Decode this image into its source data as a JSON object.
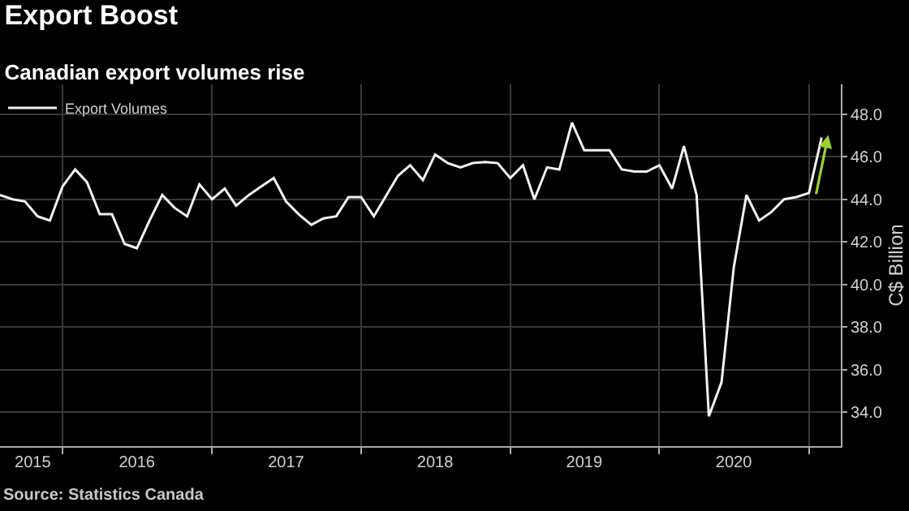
{
  "chart_data": {
    "type": "line",
    "title": "Export Boost",
    "subtitle": "Canadian export volumes rise",
    "ylabel": "C$ Billion",
    "x": [
      "2015-08",
      "2015-09",
      "2015-10",
      "2015-11",
      "2015-12",
      "2016-01",
      "2016-02",
      "2016-03",
      "2016-04",
      "2016-05",
      "2016-06",
      "2016-07",
      "2016-08",
      "2016-09",
      "2016-10",
      "2016-11",
      "2016-12",
      "2017-01",
      "2017-02",
      "2017-03",
      "2017-04",
      "2017-05",
      "2017-06",
      "2017-07",
      "2017-08",
      "2017-09",
      "2017-10",
      "2017-11",
      "2017-12",
      "2018-01",
      "2018-02",
      "2018-03",
      "2018-04",
      "2018-05",
      "2018-06",
      "2018-07",
      "2018-08",
      "2018-09",
      "2018-10",
      "2018-11",
      "2018-12",
      "2019-01",
      "2019-02",
      "2019-03",
      "2019-04",
      "2019-05",
      "2019-06",
      "2019-07",
      "2019-08",
      "2019-09",
      "2019-10",
      "2019-11",
      "2019-12",
      "2020-01",
      "2020-02",
      "2020-03",
      "2020-04",
      "2020-05",
      "2020-06",
      "2020-07",
      "2020-08",
      "2020-09",
      "2020-10",
      "2020-11",
      "2020-12",
      "2021-01",
      "2021-02"
    ],
    "series": [
      {
        "name": "Export Volumes",
        "color": "#f2f2f2",
        "values": [
          44.2,
          44.0,
          43.9,
          43.2,
          43.0,
          44.6,
          45.4,
          44.8,
          43.3,
          43.3,
          41.9,
          41.7,
          43.0,
          44.2,
          43.6,
          43.2,
          44.7,
          44.0,
          44.5,
          43.7,
          44.2,
          44.6,
          45.0,
          43.9,
          43.3,
          42.8,
          43.1,
          43.2,
          44.1,
          44.1,
          43.2,
          44.1,
          45.1,
          45.6,
          44.9,
          46.1,
          45.7,
          45.5,
          45.7,
          45.75,
          45.7,
          45.0,
          45.6,
          44.0,
          45.5,
          45.4,
          47.6,
          46.3,
          46.3,
          46.3,
          45.4,
          45.3,
          45.3,
          45.6,
          44.5,
          46.5,
          44.2,
          33.8,
          35.4,
          40.8,
          44.2,
          43.0,
          43.4,
          44.0,
          44.1,
          44.3,
          46.9
        ]
      }
    ],
    "xlim": [
      "2015-08-01",
      "2021-03-20"
    ],
    "xticks": [
      {
        "value": "2015-10-20",
        "label": "2015"
      },
      {
        "value": "2016-07-01",
        "label": "2016"
      },
      {
        "value": "2017-07-01",
        "label": "2017"
      },
      {
        "value": "2018-07-01",
        "label": "2018"
      },
      {
        "value": "2019-07-01",
        "label": "2019"
      },
      {
        "value": "2020-07-01",
        "label": "2020"
      },
      {
        "value": "2016-01-01",
        "label": null
      },
      {
        "value": "2017-01-01",
        "label": null
      },
      {
        "value": "2018-01-01",
        "label": null
      },
      {
        "value": "2019-01-01",
        "label": null
      },
      {
        "value": "2020-01-01",
        "label": null
      },
      {
        "value": "2021-01-01",
        "label": null
      }
    ],
    "ylim": [
      32.4,
      49.4
    ],
    "yticks": [
      {
        "value": 34,
        "label": "34.0"
      },
      {
        "value": 36,
        "label": "36.0"
      },
      {
        "value": 38,
        "label": "38.0"
      },
      {
        "value": 40,
        "label": "40.0"
      },
      {
        "value": 42,
        "label": "42.0"
      },
      {
        "value": 44,
        "label": "44.0"
      },
      {
        "value": 46,
        "label": "46.0"
      },
      {
        "value": 48,
        "label": "48.0"
      }
    ],
    "grid": true,
    "legend": "top left",
    "marker": "none",
    "line_style": "solid",
    "annotations": [
      "Source: Statistics Canada"
    ]
  }
}
